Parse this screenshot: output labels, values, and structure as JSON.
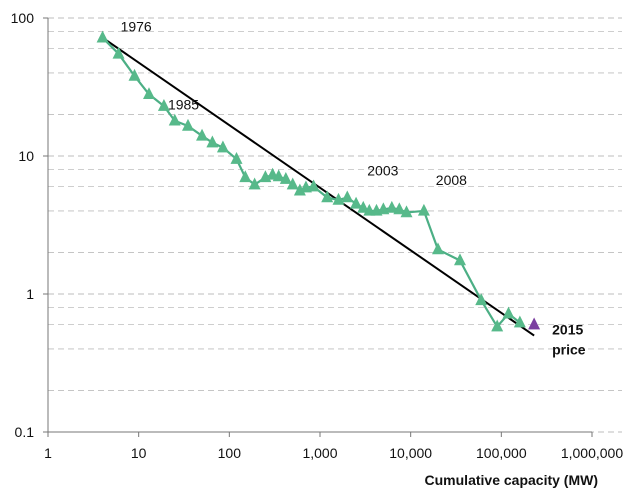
{
  "chart_data": {
    "type": "line",
    "xlabel": "Cumulative capacity (MW)",
    "ylabel": "",
    "xscale": "log",
    "yscale": "log",
    "xlim": [
      1,
      1000000
    ],
    "ylim": [
      0.1,
      100
    ],
    "xticks": [
      "1",
      "10",
      "100",
      "1,000",
      "10,000",
      "100,000",
      "1,000,000"
    ],
    "yticks": [
      "0.1",
      "1",
      "10",
      "100"
    ],
    "grid": "horizontal dashed gray lines",
    "colors": {
      "series_line": "#4caf85",
      "series_marker": "#57b98a",
      "trend_line": "#000000",
      "highlight_marker": "#7b3fa0",
      "grid": "#bdbdbd"
    },
    "series": [
      {
        "values": [
          [
            4,
            72
          ],
          [
            6,
            55
          ],
          [
            9,
            38
          ],
          [
            13,
            28
          ],
          [
            19,
            23
          ],
          [
            25,
            18
          ],
          [
            35,
            16.5
          ],
          [
            50,
            14
          ],
          [
            65,
            12.5
          ],
          [
            85,
            11.5
          ],
          [
            120,
            9.5
          ],
          [
            150,
            7
          ],
          [
            190,
            6.2
          ],
          [
            250,
            7
          ],
          [
            300,
            7.3
          ],
          [
            350,
            7.1
          ],
          [
            420,
            6.8
          ],
          [
            500,
            6.2
          ],
          [
            600,
            5.6
          ],
          [
            700,
            5.9
          ],
          [
            850,
            6
          ],
          [
            1200,
            5
          ],
          [
            1600,
            4.8
          ],
          [
            2000,
            5
          ],
          [
            2500,
            4.5
          ],
          [
            3000,
            4.2
          ],
          [
            3500,
            4
          ],
          [
            4200,
            4
          ],
          [
            5000,
            4.1
          ],
          [
            6200,
            4.2
          ],
          [
            7500,
            4.1
          ],
          [
            9000,
            3.9
          ],
          [
            14000,
            4
          ],
          [
            20000,
            2.1
          ],
          [
            35000,
            1.75
          ],
          [
            60000,
            0.9
          ],
          [
            90000,
            0.58
          ],
          [
            120000,
            0.72
          ],
          [
            160000,
            0.62
          ]
        ]
      },
      {
        "values": [
          [
            4,
            72
          ],
          [
            230000,
            0.5
          ]
        ]
      }
    ],
    "annotations": [
      {
        "label": "1976",
        "x": 4,
        "y": 72
      },
      {
        "label": "1985",
        "x": 20,
        "y": 15
      },
      {
        "label": "2003",
        "x": 3000,
        "y": 8.5
      },
      {
        "label": "2008",
        "x": 18000,
        "y": 7.3
      },
      {
        "label_line1": "2015",
        "label_line2": "price",
        "x": 230000,
        "y": 0.58
      }
    ],
    "highlight_point": {
      "x": 230000,
      "y": 0.6
    }
  }
}
